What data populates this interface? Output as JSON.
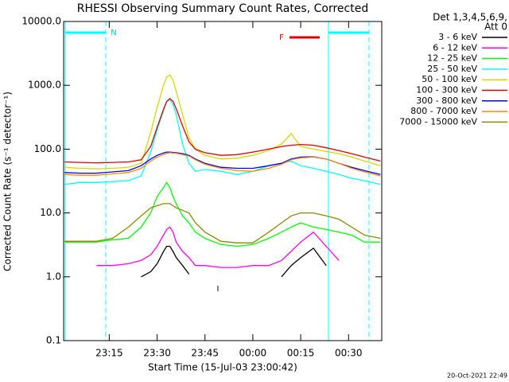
{
  "chart_data": {
    "type": "line",
    "title": "RHESSI Observing Summary Count Rates, Corrected",
    "xlabel": "Start Time (15-Jul-03 23:00:42)",
    "ylabel": "Corrected Count Rate (s⁻¹ detector⁻¹)",
    "legend_title": [
      "Det 1,3,4,5,6,9,",
      "Att 0"
    ],
    "annotations": [
      "N",
      "F",
      "I"
    ],
    "footer": "20-Oct-2021 22:49",
    "log_y": true,
    "legend": "outside-right",
    "xlim": [
      0.7,
      100.4
    ],
    "xticks": [
      {
        "value": 15,
        "label": "23:15"
      },
      {
        "value": 30,
        "label": "23:30"
      },
      {
        "value": 45,
        "label": "23:45"
      },
      {
        "value": 60,
        "label": "00:00"
      },
      {
        "value": 75,
        "label": "00:15"
      },
      {
        "value": 90,
        "label": "00:30"
      }
    ],
    "ylim": [
      0.1,
      10000
    ],
    "yticks": [
      {
        "value": 10000,
        "label": "10000.0"
      },
      {
        "value": 1000,
        "label": "1000.0"
      },
      {
        "value": 100,
        "label": "100.0"
      },
      {
        "value": 10,
        "label": "10.0"
      },
      {
        "value": 1,
        "label": "1.0"
      },
      0.1
    ],
    "x": [
      1,
      6,
      11,
      16,
      21,
      25,
      28,
      30,
      32,
      33,
      34,
      35,
      36,
      38,
      40,
      42,
      45,
      50,
      55,
      60,
      65,
      69,
      72,
      75,
      79,
      83,
      87,
      91,
      95,
      100
    ],
    "series": [
      {
        "name": "3 - 6 keV",
        "color": "#000000",
        "values": [
          null,
          null,
          null,
          null,
          null,
          1,
          1.2,
          1.6,
          2.5,
          3,
          3,
          2.5,
          2,
          1.5,
          1.1,
          null,
          null,
          null,
          null,
          null,
          null,
          1,
          1.5,
          2,
          2.8,
          1.5,
          null,
          null,
          null,
          null
        ]
      },
      {
        "name": "6 - 12 keV",
        "color": "#ff00ff",
        "values": [
          null,
          null,
          1.5,
          1.5,
          1.6,
          1.8,
          2.2,
          3,
          4.5,
          5.5,
          6,
          5,
          3.5,
          2.5,
          2,
          1.5,
          1.5,
          1.4,
          1.4,
          1.5,
          1.5,
          1.8,
          2.5,
          3.5,
          5,
          3,
          1.8,
          null,
          null,
          null
        ]
      },
      {
        "name": "12 - 25 keV",
        "color": "#00ff00",
        "values": [
          3.5,
          3.5,
          3.5,
          3.8,
          4,
          6,
          10,
          18,
          25,
          30,
          25,
          18,
          14,
          9,
          7,
          5,
          4,
          3.2,
          3,
          3.2,
          4,
          5,
          6,
          7,
          6,
          5.5,
          5,
          4.5,
          3.5,
          3.5
        ]
      },
      {
        "name": "25 - 50 keV",
        "color": "#00ffff",
        "values": [
          28,
          30,
          30,
          31,
          32,
          38,
          90,
          200,
          400,
          550,
          600,
          500,
          350,
          120,
          60,
          45,
          48,
          45,
          40,
          45,
          55,
          60,
          65,
          55,
          50,
          45,
          40,
          35,
          32,
          28
        ]
      },
      {
        "name": "50 - 100 keV",
        "color": "#d8d800",
        "values": [
          52,
          50,
          49,
          50,
          52,
          60,
          180,
          450,
          1000,
          1350,
          1450,
          1200,
          800,
          350,
          150,
          100,
          80,
          70,
          72,
          80,
          95,
          120,
          175,
          110,
          100,
          92,
          85,
          75,
          65,
          55
        ]
      },
      {
        "name": "100 - 300 keV",
        "color": "#e00000",
        "values": [
          63,
          62,
          61,
          62,
          63,
          68,
          110,
          220,
          420,
          560,
          620,
          560,
          430,
          230,
          130,
          100,
          88,
          80,
          82,
          90,
          100,
          110,
          115,
          118,
          115,
          105,
          95,
          85,
          75,
          65
        ]
      },
      {
        "name": "300 - 800 keV",
        "color": "#0000ff",
        "values": [
          43,
          42,
          42,
          44,
          46,
          55,
          70,
          80,
          87,
          90,
          90,
          89,
          88,
          85,
          80,
          70,
          60,
          52,
          50,
          50,
          55,
          60,
          70,
          75,
          76,
          70,
          60,
          52,
          46,
          40
        ]
      },
      {
        "name": "800 - 7000 keV",
        "color": "#ff8c00",
        "values": [
          40,
          39,
          39,
          41,
          43,
          50,
          65,
          75,
          82,
          86,
          88,
          87,
          86,
          82,
          78,
          68,
          58,
          50,
          46,
          45,
          50,
          58,
          68,
          73,
          75,
          70,
          60,
          50,
          44,
          38
        ]
      },
      {
        "name": "7000 - 15000 keV",
        "color": "#8b8b00",
        "values": [
          3.6,
          3.6,
          3.6,
          4,
          6,
          9,
          12,
          13,
          14,
          14,
          14,
          13,
          12,
          11,
          10,
          7,
          5,
          3.6,
          3.4,
          3.4,
          5,
          7,
          9,
          10,
          10,
          9,
          8,
          6,
          4.5,
          4
        ]
      }
    ]
  }
}
